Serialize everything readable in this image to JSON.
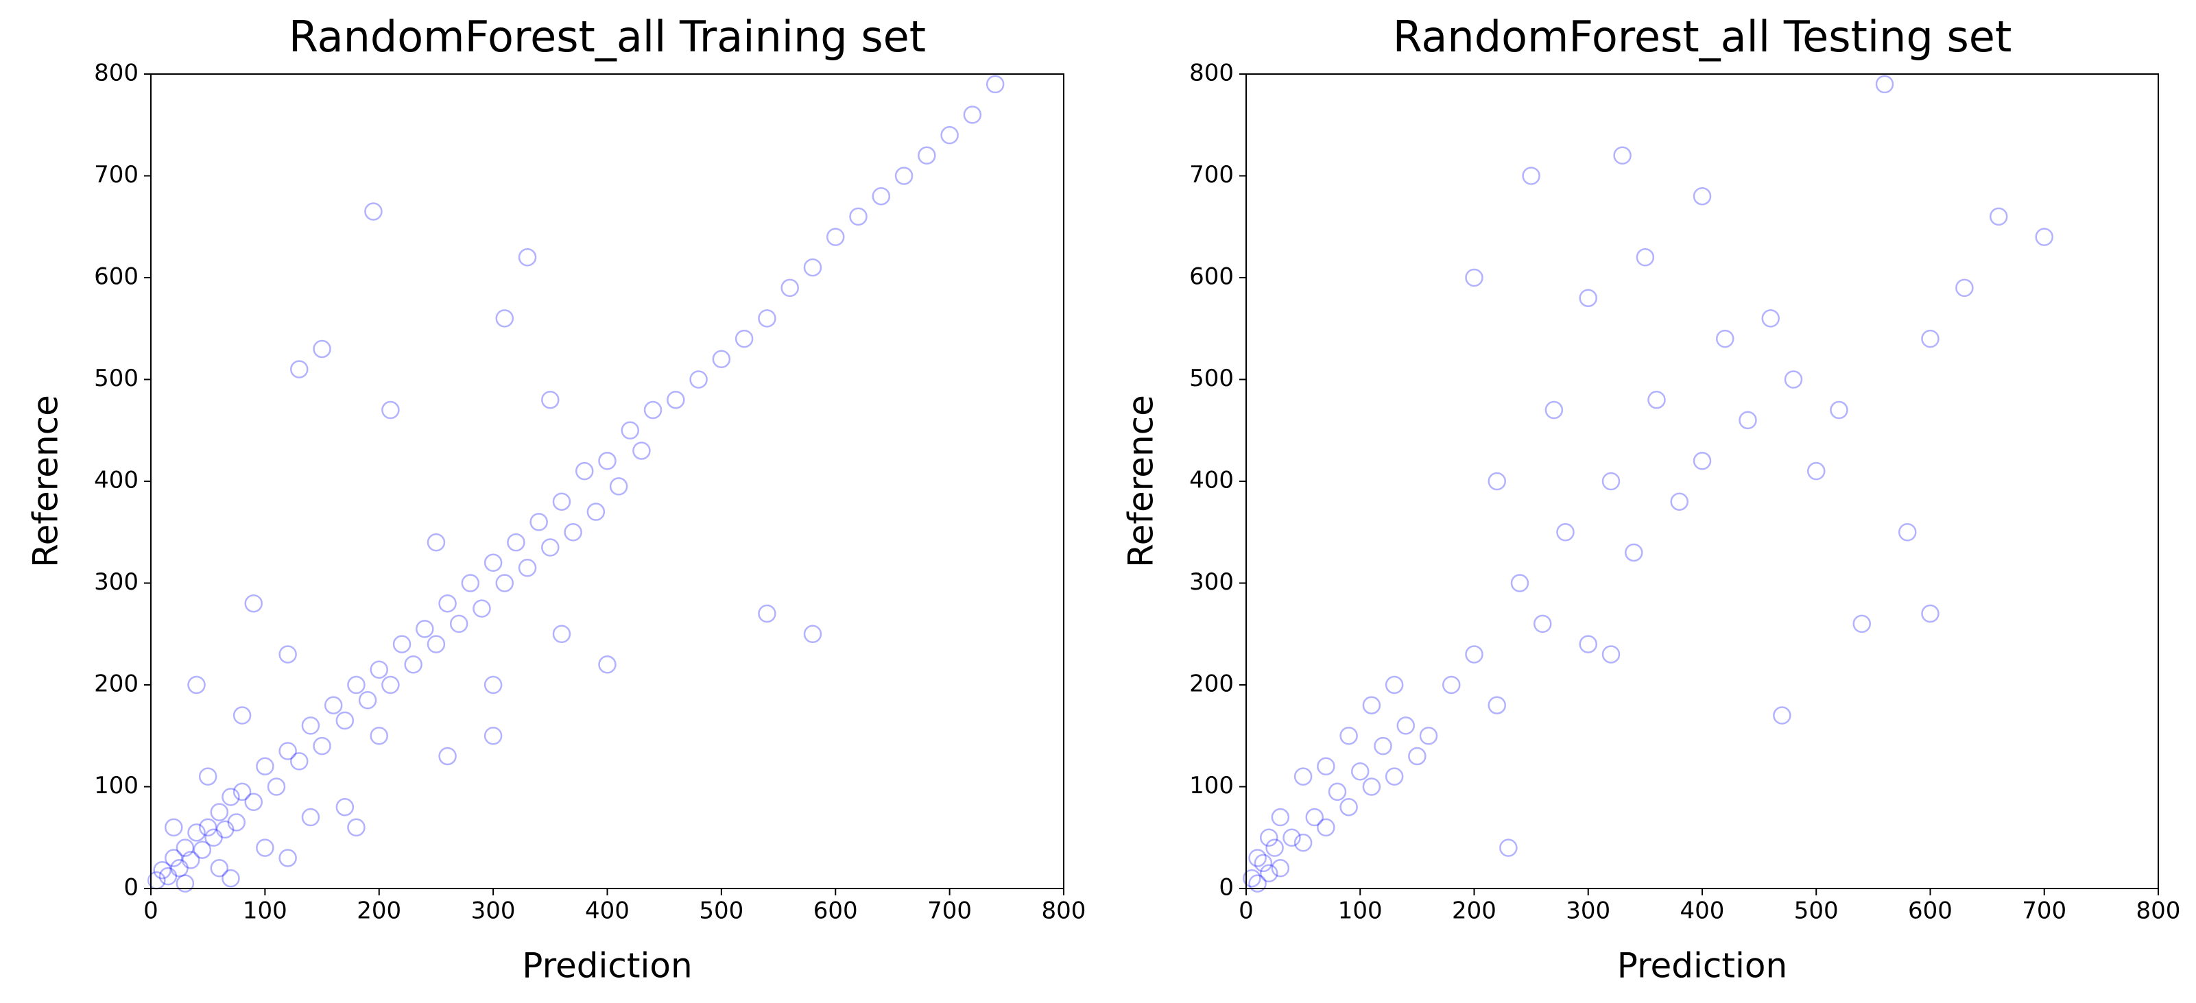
{
  "chart_data": [
    {
      "type": "scatter",
      "title": "RandomForest_all Training set",
      "xlabel": "Prediction",
      "ylabel": "Reference",
      "color": "#0000ff",
      "alpha": 0.3,
      "marker": "open-circle",
      "xlim": [
        0,
        800
      ],
      "ylim": [
        0,
        800
      ],
      "xticks": [
        0,
        100,
        200,
        300,
        400,
        500,
        600,
        700,
        800
      ],
      "yticks": [
        0,
        100,
        200,
        300,
        400,
        500,
        600,
        700,
        800
      ],
      "x": [
        5,
        10,
        15,
        20,
        25,
        30,
        35,
        40,
        45,
        50,
        55,
        60,
        65,
        70,
        75,
        80,
        90,
        100,
        110,
        120,
        130,
        140,
        150,
        160,
        170,
        180,
        190,
        200,
        210,
        220,
        230,
        240,
        250,
        260,
        270,
        280,
        290,
        300,
        310,
        320,
        330,
        340,
        350,
        360,
        370,
        380,
        390,
        400,
        410,
        420,
        430,
        440,
        460,
        480,
        500,
        520,
        540,
        560,
        580,
        600,
        620,
        640,
        660,
        680,
        700,
        720,
        740,
        20,
        30,
        50,
        60,
        80,
        100,
        120,
        140,
        150,
        200,
        180,
        250,
        300,
        350,
        400,
        130,
        170,
        210,
        260,
        310,
        360,
        90,
        70,
        40,
        540,
        580,
        195,
        120,
        300,
        330
      ],
      "values": [
        8,
        18,
        12,
        30,
        20,
        40,
        28,
        55,
        38,
        60,
        50,
        75,
        58,
        90,
        65,
        95,
        85,
        120,
        100,
        135,
        125,
        160,
        140,
        180,
        165,
        200,
        185,
        215,
        200,
        240,
        220,
        255,
        240,
        280,
        260,
        300,
        275,
        320,
        300,
        340,
        315,
        360,
        335,
        380,
        350,
        410,
        370,
        420,
        395,
        450,
        430,
        470,
        480,
        500,
        520,
        540,
        560,
        590,
        610,
        640,
        660,
        680,
        700,
        720,
        740,
        760,
        790,
        60,
        5,
        110,
        20,
        170,
        40,
        230,
        70,
        530,
        150,
        60,
        340,
        150,
        480,
        220,
        510,
        80,
        470,
        130,
        560,
        250,
        280,
        10,
        200,
        270,
        250,
        665,
        30,
        200,
        620
      ]
    },
    {
      "type": "scatter",
      "title": "RandomForest_all Testing set",
      "xlabel": "Prediction",
      "ylabel": "Reference",
      "color": "#0000ff",
      "alpha": 0.3,
      "marker": "open-circle",
      "xlim": [
        0,
        800
      ],
      "ylim": [
        0,
        800
      ],
      "xticks": [
        0,
        100,
        200,
        300,
        400,
        500,
        600,
        700,
        800
      ],
      "yticks": [
        0,
        100,
        200,
        300,
        400,
        500,
        600,
        700,
        800
      ],
      "x": [
        5,
        10,
        15,
        20,
        25,
        30,
        40,
        50,
        60,
        70,
        80,
        90,
        100,
        110,
        120,
        130,
        140,
        150,
        10,
        20,
        30,
        50,
        70,
        90,
        110,
        130,
        160,
        180,
        200,
        220,
        240,
        260,
        280,
        300,
        320,
        340,
        360,
        380,
        400,
        420,
        440,
        460,
        480,
        500,
        200,
        250,
        300,
        350,
        400,
        330,
        560,
        600,
        630,
        700,
        220,
        270,
        320,
        520,
        660,
        580,
        600,
        230,
        470,
        540
      ],
      "values": [
        10,
        5,
        25,
        15,
        40,
        20,
        50,
        45,
        70,
        60,
        95,
        80,
        115,
        100,
        140,
        110,
        160,
        130,
        30,
        50,
        70,
        110,
        120,
        150,
        180,
        200,
        150,
        200,
        230,
        180,
        300,
        260,
        350,
        240,
        400,
        330,
        480,
        380,
        420,
        540,
        460,
        560,
        500,
        410,
        600,
        700,
        580,
        620,
        680,
        720,
        790,
        540,
        590,
        640,
        400,
        470,
        230,
        470,
        660,
        350,
        270,
        40,
        170,
        260
      ]
    }
  ]
}
